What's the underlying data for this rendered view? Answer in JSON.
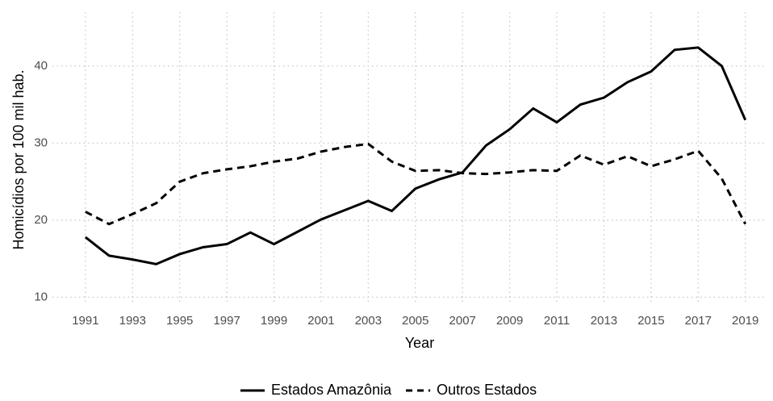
{
  "chart_data": {
    "type": "line",
    "x_label": "Year",
    "y_label": "Homicídios por 100 mil hab.",
    "x": [
      1991,
      1992,
      1993,
      1994,
      1995,
      1996,
      1997,
      1998,
      1999,
      2000,
      2001,
      2002,
      2003,
      2004,
      2005,
      2006,
      2007,
      2008,
      2009,
      2010,
      2011,
      2012,
      2013,
      2014,
      2015,
      2016,
      2017,
      2018,
      2019
    ],
    "series": [
      {
        "name": "Estados Amazônia",
        "color": "#000000",
        "linetype": "solid",
        "values": [
          17.8,
          15.4,
          14.9,
          14.3,
          15.6,
          16.5,
          16.9,
          18.4,
          16.9,
          18.5,
          20.1,
          21.3,
          22.5,
          21.2,
          24.1,
          25.3,
          26.2,
          29.7,
          31.8,
          34.5,
          32.7,
          35.0,
          35.9,
          37.9,
          39.3,
          42.1,
          42.4,
          40.0,
          33.0
        ]
      },
      {
        "name": "Outros Estados",
        "color": "#000000",
        "linetype": "dashed",
        "values": [
          21.1,
          19.5,
          20.8,
          22.2,
          25.0,
          26.1,
          26.6,
          27.0,
          27.6,
          28.0,
          28.9,
          29.5,
          29.9,
          27.6,
          26.4,
          26.5,
          26.1,
          26.0,
          26.2,
          26.5,
          26.4,
          28.4,
          27.2,
          28.3,
          27.0,
          27.9,
          29.0,
          25.4,
          19.5
        ]
      }
    ],
    "xlim": [
      1989.6,
      2019.9
    ],
    "xticks": [
      1991,
      1993,
      1995,
      1997,
      1999,
      2001,
      2003,
      2005,
      2007,
      2009,
      2011,
      2013,
      2015,
      2017,
      2019
    ],
    "ylim": [
      9,
      47
    ],
    "yticks": [
      10,
      20,
      30,
      40
    ],
    "grid": true,
    "legend": "bottom"
  }
}
